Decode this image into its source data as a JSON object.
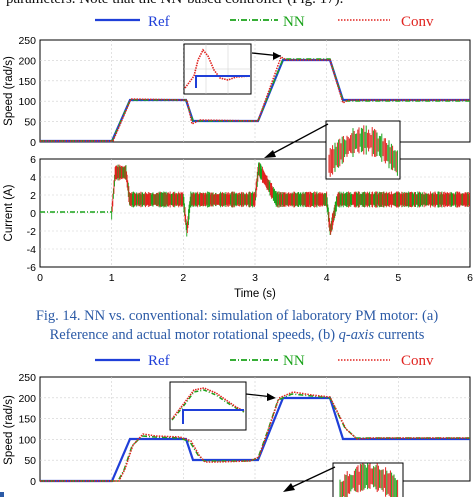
{
  "header_fragment": "parameters. Note that the NN-based controller (Fig. 17).",
  "legend": {
    "ref": "Ref",
    "nn": "NN",
    "conv": "Conv"
  },
  "colors": {
    "ref": "#1f3fd8",
    "nn": "#1aa31a",
    "conv": "#e0231f",
    "caption": "#2b5aa6"
  },
  "fig14": {
    "speed_plot": {
      "ylabel": "Speed (rad/s)",
      "yticks": [
        "0",
        "50",
        "100",
        "150",
        "200",
        "250"
      ],
      "ylim": [
        0,
        250
      ]
    },
    "current_plot": {
      "ylabel": "Current (A)",
      "yticks": [
        "-6",
        "-4",
        "-2",
        "0",
        "2",
        "4",
        "6"
      ],
      "ylim": [
        -6,
        6
      ]
    },
    "xlabel": "Time (s)",
    "xticks": [
      "0",
      "1",
      "2",
      "3",
      "4",
      "5",
      "6"
    ],
    "xlim": [
      0,
      6
    ],
    "caption_line1": "Fig. 14. NN vs. conventional: simulation of laboratory PM motor: (a)",
    "caption_line2a": "Reference and actual motor rotational speeds, (b) ",
    "caption_line2b": "q-axis",
    "caption_line2c": " currents"
  },
  "fig15": {
    "speed_plot": {
      "ylabel": "Speed (rad/s)",
      "yticks": [
        "0",
        "50",
        "100",
        "150",
        "200",
        "250"
      ],
      "ylim": [
        0,
        250
      ]
    }
  },
  "chart_data": [
    {
      "type": "line",
      "ylabel": "Speed (rad/s)",
      "ylim": [
        0,
        250
      ],
      "xlim": [
        0,
        6
      ],
      "series": [
        {
          "name": "Ref",
          "x": [
            0,
            1.05,
            1.25,
            2.0,
            2.1,
            3.0,
            3.3,
            4.05,
            4.15,
            6.0
          ],
          "y": [
            0,
            0,
            100,
            100,
            50,
            50,
            200,
            200,
            100,
            100
          ]
        },
        {
          "name": "NN",
          "x": [
            0,
            1.05,
            1.25,
            2.0,
            2.1,
            3.0,
            3.3,
            4.05,
            4.15,
            6.0
          ],
          "y": [
            0,
            0,
            100,
            100,
            50,
            50,
            200,
            200,
            100,
            100
          ]
        },
        {
          "name": "Conv",
          "x": [
            0,
            1.05,
            1.25,
            2.0,
            2.1,
            3.0,
            3.3,
            4.05,
            4.15,
            6.0
          ],
          "y": [
            0,
            0,
            100,
            100,
            50,
            50,
            200,
            200,
            100,
            100
          ]
        }
      ]
    },
    {
      "type": "line",
      "ylabel": "Current (A)",
      "xlabel": "Time (s)",
      "ylim": [
        -6,
        6
      ],
      "xlim": [
        0,
        6
      ],
      "series": [
        {
          "name": "NN",
          "x": [
            0,
            1.0,
            1.05,
            1.2,
            1.25,
            2.0,
            2.05,
            2.1,
            3.0,
            3.05,
            3.3,
            4.0,
            4.05,
            4.15,
            6.0
          ],
          "y": [
            0,
            0,
            4.5,
            4.5,
            1.5,
            1.5,
            -2.0,
            1.5,
            1.5,
            5.0,
            1.5,
            1.5,
            -2.0,
            1.5,
            1.5
          ]
        },
        {
          "name": "Conv",
          "x": [
            0,
            1.0,
            1.05,
            1.2,
            1.25,
            2.0,
            2.05,
            2.1,
            3.0,
            3.05,
            3.3,
            4.0,
            4.05,
            4.15,
            6.0
          ],
          "y": [
            0,
            0,
            4.5,
            4.5,
            1.5,
            1.5,
            -2.0,
            1.5,
            1.5,
            5.0,
            1.5,
            1.5,
            -2.0,
            1.5,
            1.5
          ]
        }
      ]
    },
    {
      "type": "line",
      "ylabel": "Speed (rad/s)",
      "ylim": [
        0,
        250
      ],
      "xlim": [
        0,
        6
      ],
      "series": [
        {
          "name": "Ref",
          "x": [
            0,
            1.05,
            1.3,
            2.0,
            2.15,
            3.0,
            3.3,
            4.05,
            4.25,
            6.0
          ],
          "y": [
            0,
            0,
            100,
            100,
            50,
            50,
            200,
            200,
            100,
            100
          ]
        },
        {
          "name": "NN",
          "x": [
            0,
            1.15,
            1.45,
            2.05,
            2.2,
            3.1,
            3.45,
            4.15,
            4.4,
            6.0
          ],
          "y": [
            0,
            0,
            110,
            100,
            45,
            50,
            222,
            200,
            98,
            100
          ]
        },
        {
          "name": "Conv",
          "x": [
            0,
            1.15,
            1.45,
            2.05,
            2.2,
            3.1,
            3.45,
            4.15,
            4.4,
            6.0
          ],
          "y": [
            0,
            0,
            112,
            100,
            43,
            50,
            225,
            200,
            97,
            100
          ]
        }
      ]
    }
  ]
}
